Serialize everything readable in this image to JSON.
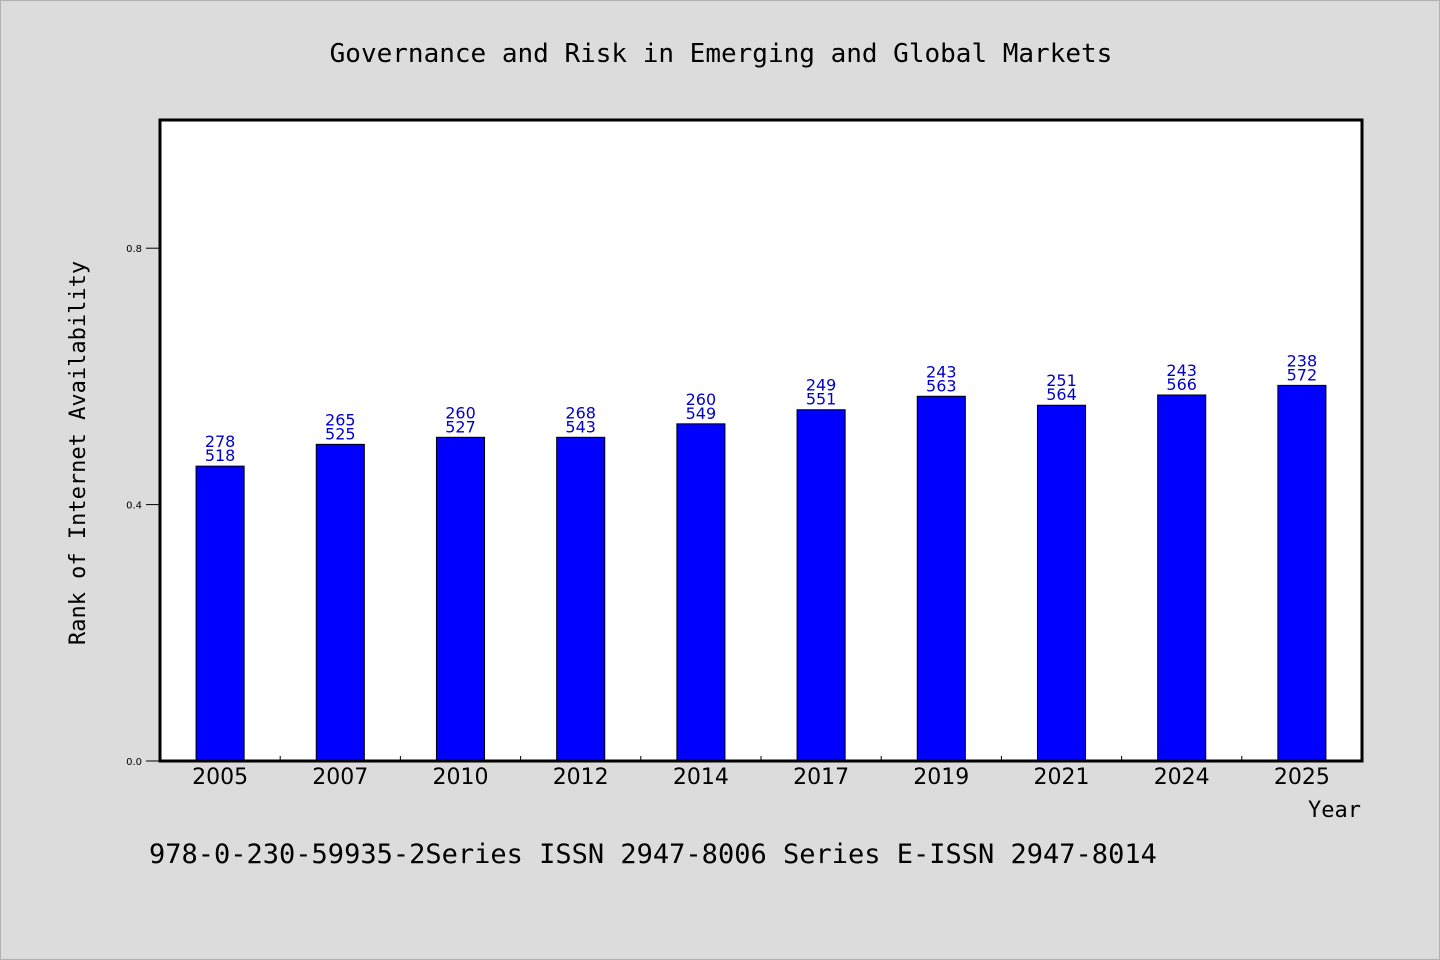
{
  "chart_data": {
    "type": "bar",
    "title": "Governance and Risk in Emerging and Global Markets",
    "xlabel": "Year",
    "ylabel": "Rank of Internet Availability",
    "categories": [
      "2005",
      "2007",
      "2010",
      "2012",
      "2014",
      "2017",
      "2019",
      "2021",
      "2024",
      "2025"
    ],
    "values": [
      0.46,
      0.494,
      0.505,
      0.505,
      0.526,
      0.548,
      0.569,
      0.555,
      0.571,
      0.586
    ],
    "label_top": [
      "278",
      "265",
      "260",
      "268",
      "260",
      "249",
      "243",
      "251",
      "243",
      "238"
    ],
    "label_bottom": [
      "518",
      "525",
      "527",
      "543",
      "549",
      "551",
      "563",
      "564",
      "566",
      "572"
    ],
    "ylim": [
      0,
      1.0
    ],
    "yticks": [
      0.0,
      0.4,
      0.8
    ],
    "ytick_labels": [
      "0.0",
      "0.4",
      "0.8"
    ],
    "grid": false,
    "bar_color": "#0000ff",
    "label_color": "#0000cc"
  },
  "footer": "978-0-230-59935-2Series ISSN 2947-8006 Series E-ISSN 2947-8014"
}
